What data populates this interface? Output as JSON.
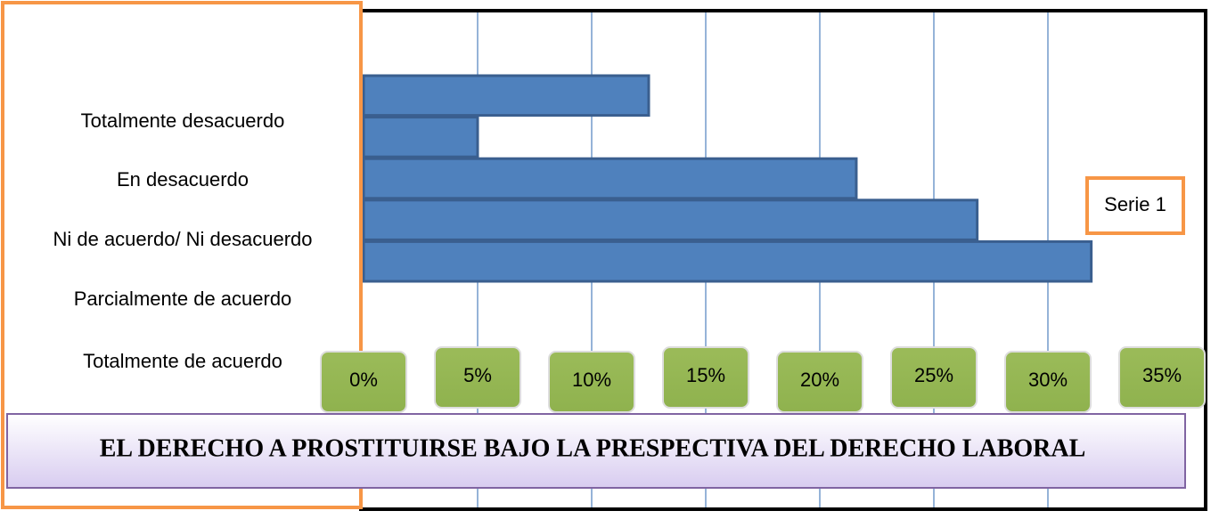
{
  "chart_data": {
    "type": "bar",
    "orientation": "horizontal",
    "title": "EL DERECHO A PROSTITUIRSE BAJO LA PRESPECTIVA DEL DERECHO LABORAL",
    "categories": [
      "Totalmente desacuerdo",
      "En desacuerdo",
      "Ni de acuerdo/ Ni desacuerdo",
      "Parcialmente de acuerdo",
      "Totalmente de acuerdo"
    ],
    "series": [
      {
        "name": "Serie 1",
        "color": "#4f81bd",
        "values": [
          12.5,
          5,
          21.6,
          26.9,
          31.9
        ]
      }
    ],
    "xlim": [
      0,
      35
    ],
    "xticks": [
      {
        "value": 0,
        "label": "0%"
      },
      {
        "value": 5,
        "label": "5%"
      },
      {
        "value": 10,
        "label": "10%"
      },
      {
        "value": 15,
        "label": "15%"
      },
      {
        "value": 20,
        "label": "20%"
      },
      {
        "value": 25,
        "label": "25%"
      },
      {
        "value": 30,
        "label": "30%"
      },
      {
        "value": 35,
        "label": "35%"
      }
    ],
    "grid": true
  }
}
